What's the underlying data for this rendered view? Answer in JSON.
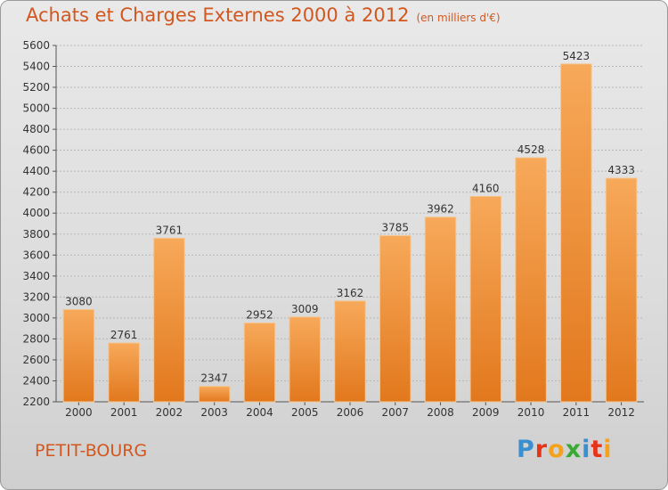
{
  "header": {
    "title": "Achats et Charges Externes 2000 à 2012",
    "subtitle": "(en milliers d'€)"
  },
  "footer": {
    "place": "PETIT-BOURG",
    "logo_letters": [
      "P",
      "r",
      "o",
      "x",
      "i",
      "t",
      "i"
    ],
    "logo_colors": [
      "#3a8fd1",
      "#e7331a",
      "#f5a11c",
      "#3aaa35",
      "#3a8fd1",
      "#e7331a",
      "#f5a11c"
    ]
  },
  "colors": {
    "bar_top": "#f7a95a",
    "bar_bottom": "#e2781d",
    "bar_edge": "#f5c590",
    "text": "#333333",
    "accent": "#d2571f"
  },
  "chart_data": {
    "type": "bar",
    "title": "Achats et Charges Externes 2000 à 2012",
    "subtitle": "(en milliers d'€)",
    "categories": [
      "2000",
      "2001",
      "2002",
      "2003",
      "2004",
      "2005",
      "2006",
      "2007",
      "2008",
      "2009",
      "2010",
      "2011",
      "2012"
    ],
    "values": [
      3080,
      2761,
      3761,
      2347,
      2952,
      3009,
      3162,
      3785,
      3962,
      4160,
      4528,
      5423,
      4333
    ],
    "ylim": [
      2200,
      5600
    ],
    "yticks": [
      2200,
      2400,
      2600,
      2800,
      3000,
      3200,
      3400,
      3600,
      3800,
      4000,
      4200,
      4400,
      4600,
      4800,
      5000,
      5200,
      5400,
      5600
    ],
    "grid": true,
    "legend": "none"
  }
}
